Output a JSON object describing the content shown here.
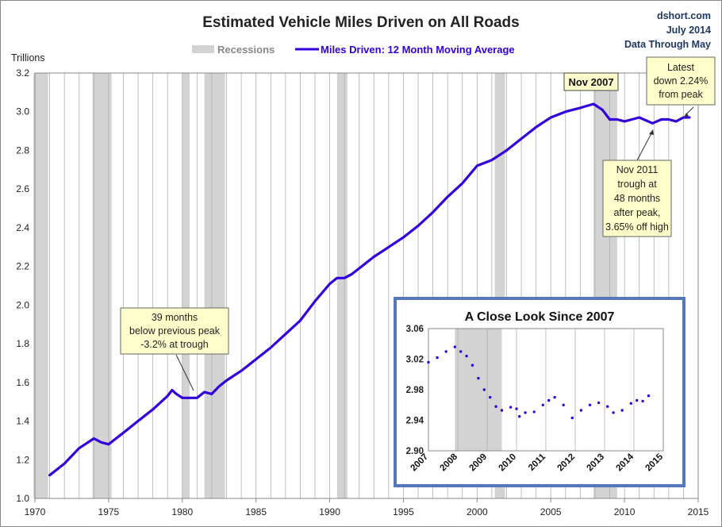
{
  "title": "Estimated Vehicle Miles Driven on All Roads",
  "source": {
    "site": "dshort.com",
    "date": "July 2014",
    "through": "Data Through May"
  },
  "legend": {
    "recessions_label": "Recessions",
    "series_label": "Miles Driven: 12 Month Moving Average"
  },
  "colors": {
    "series": "#3300dd",
    "recession": "#d3d3d3",
    "grid": "#b0b0b0",
    "callout_bg": "#ffffcc",
    "inset_border": "#5577bb"
  },
  "annotations": {
    "peak_1979_lines": [
      "39 months",
      "below previous peak",
      "-3.2% at trough"
    ],
    "nov2007_label": "Nov 2007",
    "latest_lines": [
      "Latest",
      "down 2.24%",
      "from peak"
    ],
    "trough_2011_lines": [
      "Nov 2011",
      "trough at",
      "48 months",
      "after peak,",
      "3.65% off high"
    ]
  },
  "chart_data": [
    {
      "type": "line",
      "title": "Estimated Vehicle Miles Driven on All Roads",
      "ylabel": "Trillions",
      "xlim": [
        1970,
        2015
      ],
      "ylim": [
        1.0,
        3.2
      ],
      "x_ticks": [
        1970,
        1975,
        1980,
        1985,
        1990,
        1995,
        2000,
        2005,
        2010,
        2015
      ],
      "y_ticks": [
        "1.0",
        "1.2",
        "1.4",
        "1.6",
        "1.8",
        "2.0",
        "2.2",
        "2.4",
        "2.6",
        "2.8",
        "3.0",
        "3.2"
      ],
      "recessions": [
        [
          1969.9,
          1970.9
        ],
        [
          1973.9,
          1975.2
        ],
        [
          1980.0,
          1980.5
        ],
        [
          1981.5,
          1982.9
        ],
        [
          1990.5,
          1991.2
        ],
        [
          2001.2,
          2001.9
        ],
        [
          2007.9,
          2009.5
        ]
      ],
      "series": [
        {
          "name": "Miles Driven: 12 Month Moving Average",
          "points": [
            [
              1971.0,
              1.12
            ],
            [
              1972.0,
              1.18
            ],
            [
              1973.0,
              1.26
            ],
            [
              1974.0,
              1.31
            ],
            [
              1974.5,
              1.29
            ],
            [
              1975.0,
              1.28
            ],
            [
              1975.5,
              1.31
            ],
            [
              1976.0,
              1.34
            ],
            [
              1977.0,
              1.4
            ],
            [
              1978.0,
              1.46
            ],
            [
              1979.0,
              1.53
            ],
            [
              1979.3,
              1.56
            ],
            [
              1979.6,
              1.54
            ],
            [
              1980.0,
              1.52
            ],
            [
              1980.5,
              1.52
            ],
            [
              1981.0,
              1.52
            ],
            [
              1981.5,
              1.55
            ],
            [
              1982.0,
              1.54
            ],
            [
              1982.5,
              1.58
            ],
            [
              1983.0,
              1.61
            ],
            [
              1984.0,
              1.66
            ],
            [
              1985.0,
              1.72
            ],
            [
              1986.0,
              1.78
            ],
            [
              1987.0,
              1.85
            ],
            [
              1988.0,
              1.92
            ],
            [
              1989.0,
              2.02
            ],
            [
              1990.0,
              2.11
            ],
            [
              1990.5,
              2.14
            ],
            [
              1991.0,
              2.14
            ],
            [
              1991.5,
              2.16
            ],
            [
              1992.0,
              2.19
            ],
            [
              1993.0,
              2.25
            ],
            [
              1994.0,
              2.3
            ],
            [
              1995.0,
              2.35
            ],
            [
              1996.0,
              2.41
            ],
            [
              1997.0,
              2.48
            ],
            [
              1998.0,
              2.56
            ],
            [
              1999.0,
              2.63
            ],
            [
              2000.0,
              2.72
            ],
            [
              2001.0,
              2.75
            ],
            [
              2002.0,
              2.8
            ],
            [
              2003.0,
              2.86
            ],
            [
              2004.0,
              2.92
            ],
            [
              2005.0,
              2.97
            ],
            [
              2006.0,
              3.0
            ],
            [
              2007.0,
              3.02
            ],
            [
              2007.9,
              3.04
            ],
            [
              2008.5,
              3.01
            ],
            [
              2009.0,
              2.96
            ],
            [
              2009.5,
              2.96
            ],
            [
              2010.0,
              2.95
            ],
            [
              2010.5,
              2.96
            ],
            [
              2011.0,
              2.97
            ],
            [
              2011.9,
              2.94
            ],
            [
              2012.5,
              2.96
            ],
            [
              2013.0,
              2.96
            ],
            [
              2013.5,
              2.95
            ],
            [
              2014.0,
              2.97
            ],
            [
              2014.4,
              2.97
            ]
          ]
        }
      ]
    },
    {
      "type": "scatter",
      "title": "A Close Look Since 2007",
      "xlim": [
        2007,
        2015
      ],
      "ylim": [
        2.9,
        3.06
      ],
      "x_ticks": [
        "2007",
        "2008",
        "2009",
        "2010",
        "2011",
        "2012",
        "2013",
        "2014",
        "2015"
      ],
      "y_ticks": [
        "2.90",
        "2.94",
        "2.98",
        "3.02",
        "3.06"
      ],
      "recessions": [
        [
          2007.9,
          2009.5
        ]
      ],
      "series": [
        {
          "name": "Miles Driven: 12 Month Moving Average",
          "points": [
            [
              2007.0,
              3.016
            ],
            [
              2007.3,
              3.022
            ],
            [
              2007.6,
              3.03
            ],
            [
              2007.9,
              3.036
            ],
            [
              2008.1,
              3.03
            ],
            [
              2008.3,
              3.024
            ],
            [
              2008.5,
              3.012
            ],
            [
              2008.7,
              2.995
            ],
            [
              2008.9,
              2.98
            ],
            [
              2009.1,
              2.97
            ],
            [
              2009.3,
              2.958
            ],
            [
              2009.5,
              2.953
            ],
            [
              2009.8,
              2.957
            ],
            [
              2010.0,
              2.955
            ],
            [
              2010.1,
              2.945
            ],
            [
              2010.3,
              2.95
            ],
            [
              2010.6,
              2.951
            ],
            [
              2010.9,
              2.96
            ],
            [
              2011.1,
              2.966
            ],
            [
              2011.3,
              2.97
            ],
            [
              2011.6,
              2.96
            ],
            [
              2011.9,
              2.943
            ],
            [
              2012.2,
              2.953
            ],
            [
              2012.5,
              2.96
            ],
            [
              2012.8,
              2.963
            ],
            [
              2013.1,
              2.958
            ],
            [
              2013.3,
              2.95
            ],
            [
              2013.6,
              2.953
            ],
            [
              2013.9,
              2.962
            ],
            [
              2014.1,
              2.966
            ],
            [
              2014.3,
              2.965
            ],
            [
              2014.5,
              2.972
            ]
          ]
        }
      ]
    }
  ]
}
